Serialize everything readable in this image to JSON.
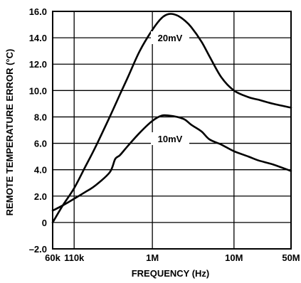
{
  "chart_data": {
    "type": "line",
    "xlabel": "FREQUENCY (Hz)",
    "ylabel": "REMOTE TEMPERATURE ERROR (°C)",
    "x_scale": "log",
    "xlim": [
      60000,
      50000000
    ],
    "ylim": [
      -2.0,
      16.0
    ],
    "grid": true,
    "x_ticks": [
      {
        "value": 60000,
        "label": "60k"
      },
      {
        "value": 110000,
        "label": "110k"
      },
      {
        "value": 1000000,
        "label": "1M"
      },
      {
        "value": 10000000,
        "label": "10M"
      },
      {
        "value": 50000000,
        "label": "50M"
      }
    ],
    "x_grid": [
      110000,
      1000000,
      10000000
    ],
    "y_ticks": [
      {
        "value": -2.0,
        "label": "–2.0"
      },
      {
        "value": 0,
        "label": "0"
      },
      {
        "value": 2.0,
        "label": "2.0"
      },
      {
        "value": 4.0,
        "label": "4.0"
      },
      {
        "value": 6.0,
        "label": "6.0"
      },
      {
        "value": 8.0,
        "label": "8.0"
      },
      {
        "value": 10.0,
        "label": "10.0"
      },
      {
        "value": 12.0,
        "label": "12.0"
      },
      {
        "value": 14.0,
        "label": "14.0"
      },
      {
        "value": 16.0,
        "label": "16.0"
      }
    ],
    "series": [
      {
        "name": "20mV",
        "x": [
          60000,
          80000,
          110000,
          150000,
          200000,
          300000,
          400000,
          500000,
          700000,
          1000000,
          1300000,
          1600000,
          2000000,
          2500000,
          3000000,
          4000000,
          5000000,
          7000000,
          10000000,
          15000000,
          20000000,
          30000000,
          50000000
        ],
        "y": [
          0.0,
          1.3,
          2.6,
          4.2,
          5.7,
          8.0,
          9.7,
          11.0,
          13.0,
          14.6,
          15.5,
          15.8,
          15.7,
          15.3,
          14.8,
          13.7,
          12.6,
          11.0,
          10.0,
          9.5,
          9.3,
          9.0,
          8.7
        ]
      },
      {
        "name": "10mV",
        "x": [
          60000,
          80000,
          110000,
          150000,
          200000,
          300000,
          350000,
          400000,
          500000,
          700000,
          1000000,
          1300000,
          1600000,
          2000000,
          2500000,
          3000000,
          4000000,
          5000000,
          7000000,
          10000000,
          15000000,
          20000000,
          30000000,
          50000000
        ],
        "y": [
          0.9,
          1.3,
          1.8,
          2.3,
          2.8,
          3.8,
          4.8,
          5.1,
          5.8,
          6.8,
          7.7,
          8.1,
          8.1,
          8.0,
          7.8,
          7.4,
          6.9,
          6.3,
          5.9,
          5.4,
          5.0,
          4.7,
          4.4,
          3.9
        ]
      }
    ],
    "annotations": [
      "20mV",
      "10mV"
    ]
  }
}
